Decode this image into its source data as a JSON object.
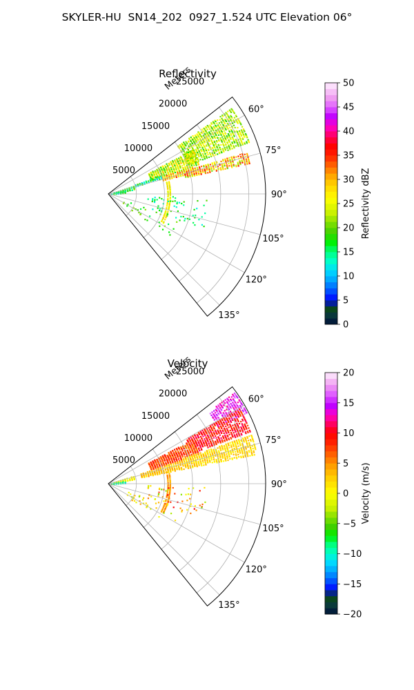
{
  "figure": {
    "title": "SKYLER-HU  SN14_202  0927_1.524 UTC Elevation 06°"
  },
  "chart_data": [
    {
      "type": "heatmap",
      "subtype": "polar-sector (PPI)",
      "title": "Reflectivity",
      "radial_label": "Meters",
      "radial_ticks": [
        "5000",
        "10000",
        "15000",
        "20000",
        "25000"
      ],
      "radial_tick_values": [
        5000,
        10000,
        15000,
        20000,
        25000
      ],
      "r_max": 28000,
      "angle_ticks": [
        "60°",
        "75°",
        "90°",
        "105°",
        "120°",
        "135°"
      ],
      "angle_tick_values": [
        60,
        75,
        90,
        105,
        120,
        135
      ],
      "theta_range": [
        52,
        141
      ],
      "grid": true,
      "colorbar": {
        "label": "Reflectivity dBZ",
        "range": [
          0,
          50
        ],
        "ticks": [
          "0",
          "5",
          "10",
          "15",
          "20",
          "25",
          "30",
          "35",
          "40",
          "45",
          "50"
        ],
        "stops": [
          {
            "v": 0,
            "c": "#00103a"
          },
          {
            "v": 2,
            "c": "#0a3a3a"
          },
          {
            "v": 3.5,
            "c": "#0a4a10"
          },
          {
            "v": 5,
            "c": "#0000ff"
          },
          {
            "v": 7,
            "c": "#0055ff"
          },
          {
            "v": 9,
            "c": "#00a0ff"
          },
          {
            "v": 11,
            "c": "#00d8ff"
          },
          {
            "v": 13,
            "c": "#00ffcc"
          },
          {
            "v": 15,
            "c": "#00ff80"
          },
          {
            "v": 17,
            "c": "#00f000"
          },
          {
            "v": 19,
            "c": "#40d000"
          },
          {
            "v": 21,
            "c": "#80e000"
          },
          {
            "v": 23,
            "c": "#c8f000"
          },
          {
            "v": 26,
            "c": "#ffff00"
          },
          {
            "v": 29,
            "c": "#ffd000"
          },
          {
            "v": 31,
            "c": "#ffa000"
          },
          {
            "v": 33,
            "c": "#ff6000"
          },
          {
            "v": 35,
            "c": "#ff2000"
          },
          {
            "v": 37,
            "c": "#ff0000"
          },
          {
            "v": 39,
            "c": "#ff0060"
          },
          {
            "v": 41,
            "c": "#ff00c8"
          },
          {
            "v": 43,
            "c": "#c000ff"
          },
          {
            "v": 45,
            "c": "#e060ff"
          },
          {
            "v": 47,
            "c": "#f0a0f0"
          },
          {
            "v": 50,
            "c": "#fff0ff"
          }
        ]
      },
      "echo_regions": [
        {
          "r": [
            15000,
            27000
          ],
          "theta": [
            55,
            70
          ],
          "value": [
            18,
            27
          ],
          "density": 0.7
        },
        {
          "r": [
            8000,
            17000
          ],
          "theta": [
            62,
            72
          ],
          "value": [
            17,
            30
          ],
          "density": 0.7
        },
        {
          "r": [
            14000,
            26000
          ],
          "theta": [
            73,
            78
          ],
          "value": [
            20,
            36
          ],
          "density": 0.75
        },
        {
          "r": [
            10000,
            16000
          ],
          "theta": [
            72,
            76
          ],
          "value": [
            22,
            36
          ],
          "density": 0.7
        },
        {
          "r": [
            5000,
            10000
          ],
          "theta": [
            70,
            74
          ],
          "value": [
            10,
            20
          ],
          "density": 0.45
        },
        {
          "r": [
            1000,
            5000
          ],
          "theta": [
            72,
            80
          ],
          "value": [
            12,
            22
          ],
          "density": 0.5
        },
        {
          "r": [
            500,
            3000
          ],
          "theta": [
            80,
            86
          ],
          "value": [
            10,
            20
          ],
          "density": 0.5
        },
        {
          "r": [
            10500,
            11200
          ],
          "theta": [
            78,
            118
          ],
          "value": [
            22,
            30
          ],
          "density": 0.55
        },
        {
          "r": [
            7000,
            18000
          ],
          "theta": [
            92,
            110
          ],
          "value": [
            12,
            20
          ],
          "density": 0.05
        },
        {
          "r": [
            3000,
            14000
          ],
          "theta": [
            110,
            125
          ],
          "value": [
            15,
            22
          ],
          "density": 0.03
        }
      ]
    },
    {
      "type": "heatmap",
      "subtype": "polar-sector (PPI)",
      "title": "Velocity",
      "radial_label": "Meters",
      "radial_ticks": [
        "5000",
        "10000",
        "15000",
        "20000",
        "25000"
      ],
      "radial_tick_values": [
        5000,
        10000,
        15000,
        20000,
        25000
      ],
      "r_max": 28000,
      "angle_ticks": [
        "60°",
        "75°",
        "90°",
        "105°",
        "120°",
        "135°"
      ],
      "angle_tick_values": [
        60,
        75,
        90,
        105,
        120,
        135
      ],
      "theta_range": [
        52,
        141
      ],
      "grid": true,
      "colorbar": {
        "label": "Velocity (m/s)",
        "range": [
          -20,
          20
        ],
        "ticks": [
          "−20",
          "−15",
          "−10",
          "−5",
          "0",
          "5",
          "10",
          "15",
          "20"
        ],
        "stops": [
          {
            "v": -20,
            "c": "#00103a"
          },
          {
            "v": -18.5,
            "c": "#0a3a3a"
          },
          {
            "v": -17,
            "c": "#0a4a10"
          },
          {
            "v": -16,
            "c": "#0000ff"
          },
          {
            "v": -14.5,
            "c": "#0055ff"
          },
          {
            "v": -13,
            "c": "#00a0ff"
          },
          {
            "v": -11.5,
            "c": "#00d8ff"
          },
          {
            "v": -10,
            "c": "#00ffcc"
          },
          {
            "v": -8.5,
            "c": "#00ff80"
          },
          {
            "v": -7,
            "c": "#00f000"
          },
          {
            "v": -5.5,
            "c": "#40d000"
          },
          {
            "v": -4,
            "c": "#80e000"
          },
          {
            "v": -2.5,
            "c": "#c8f000"
          },
          {
            "v": 0,
            "c": "#ffff00"
          },
          {
            "v": 2.5,
            "c": "#ffd000"
          },
          {
            "v": 4.5,
            "c": "#ffa000"
          },
          {
            "v": 6.5,
            "c": "#ff6000"
          },
          {
            "v": 8.5,
            "c": "#ff2000"
          },
          {
            "v": 10,
            "c": "#ff0000"
          },
          {
            "v": 11.5,
            "c": "#ff0060"
          },
          {
            "v": 13,
            "c": "#ff00c8"
          },
          {
            "v": 14.5,
            "c": "#c000ff"
          },
          {
            "v": 16.5,
            "c": "#e060ff"
          },
          {
            "v": 18,
            "c": "#f0a0f0"
          },
          {
            "v": 20,
            "c": "#fff0ff"
          }
        ]
      },
      "echo_regions": [
        {
          "r": [
            22000,
            28000
          ],
          "theta": [
            54,
            63
          ],
          "value": [
            12,
            17
          ],
          "density": 0.75
        },
        {
          "r": [
            16000,
            27000
          ],
          "theta": [
            60,
            70
          ],
          "value": [
            7,
            12
          ],
          "density": 0.7
        },
        {
          "r": [
            8000,
            17000
          ],
          "theta": [
            62,
            72
          ],
          "value": [
            5,
            10
          ],
          "density": 0.75
        },
        {
          "r": [
            14000,
            27000
          ],
          "theta": [
            71,
            79
          ],
          "value": [
            0,
            4
          ],
          "density": 0.75
        },
        {
          "r": [
            6000,
            14000
          ],
          "theta": [
            72,
            79
          ],
          "value": [
            1,
            5
          ],
          "density": 0.65
        },
        {
          "r": [
            1000,
            5000
          ],
          "theta": [
            72,
            80
          ],
          "value": [
            -2,
            2
          ],
          "density": 0.45
        },
        {
          "r": [
            500,
            3000
          ],
          "theta": [
            80,
            87
          ],
          "value": [
            -12,
            -7
          ],
          "density": 0.55
        },
        {
          "r": [
            10500,
            11200
          ],
          "theta": [
            78,
            118
          ],
          "value": [
            3,
            6
          ],
          "density": 0.55
        },
        {
          "r": [
            7000,
            18000
          ],
          "theta": [
            92,
            110
          ],
          "value": [
            -5,
            11
          ],
          "density": 0.05
        },
        {
          "r": [
            3000,
            14000
          ],
          "theta": [
            110,
            125
          ],
          "value": [
            -4,
            5
          ],
          "density": 0.03
        }
      ]
    }
  ]
}
